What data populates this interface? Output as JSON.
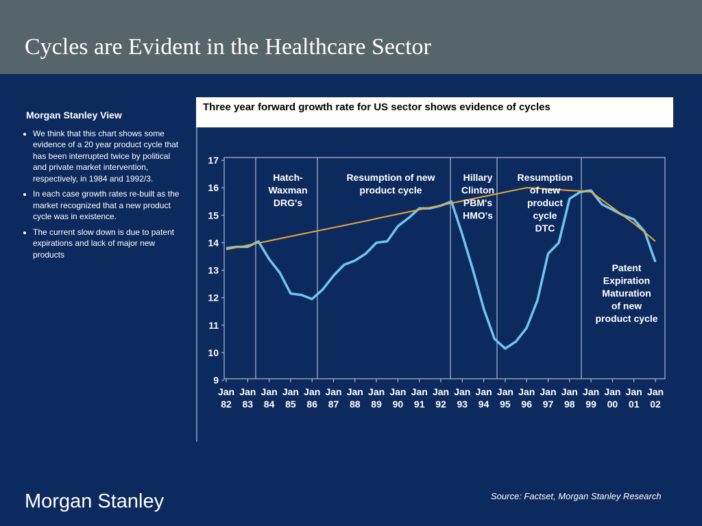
{
  "title": "Cycles are Evident in the Healthcare Sector",
  "sidebar": {
    "heading": "Morgan Stanley View",
    "bullets": [
      "We think that this chart shows some evidence of a 20 year product cycle that has been interrupted twice by political and private market intervention, respectively, in 1984 and 1992/3.",
      "In each case growth rates re-built as the market recognized that a new product cycle was in existence.",
      "The current slow down is due to patent expirations and lack of major new products"
    ]
  },
  "source": "Source: Factset, Morgan Stanley Research",
  "logo": "Morgan Stanley",
  "chart_data": {
    "type": "line",
    "title": "Three year forward growth rate for US sector shows evidence of cycles",
    "categories": [
      "Jan 82",
      null,
      "Jan 83",
      null,
      "Jan 84",
      null,
      "Jan 85",
      null,
      "Jan 86",
      null,
      "Jan 87",
      null,
      "Jan 88",
      null,
      "Jan 89",
      null,
      "Jan 90",
      null,
      "Jan 91",
      null,
      "Jan 92",
      null,
      "Jan 93",
      null,
      "Jan 94",
      null,
      "Jan 95",
      null,
      "Jan 96",
      null,
      "Jan 97",
      null,
      "Jan 98",
      null,
      "Jan 99",
      null,
      "Jan 00",
      null,
      "Jan 01",
      null,
      "Jan 02"
    ],
    "series": [
      {
        "color": "#6ec6f0",
        "values": [
          13.8,
          13.85,
          13.85,
          14.05,
          13.4,
          12.9,
          12.15,
          12.1,
          11.95,
          12.3,
          12.8,
          13.2,
          13.35,
          13.6,
          14.0,
          14.05,
          14.6,
          14.9,
          15.25,
          15.25,
          15.35,
          15.5,
          14.3,
          13.0,
          11.6,
          10.5,
          10.15,
          10.4,
          10.9,
          11.9,
          13.6,
          14.0,
          15.6,
          15.85,
          15.9,
          15.4,
          15.2,
          15.0,
          14.85,
          14.4,
          13.3
        ]
      },
      {
        "color": "#e8a93a",
        "values": [
          13.75,
          13.83,
          13.91,
          13.99,
          14.07,
          14.15,
          14.23,
          14.31,
          14.39,
          14.47,
          14.55,
          14.63,
          14.71,
          14.79,
          14.88,
          14.96,
          15.04,
          15.12,
          15.2,
          15.28,
          15.36,
          15.44,
          15.52,
          15.6,
          15.68,
          15.76,
          15.84,
          15.92,
          16.0,
          15.98,
          15.95,
          15.93,
          15.9,
          15.88,
          15.85,
          15.56,
          15.28,
          14.99,
          14.7,
          14.38,
          14.05
        ]
      }
    ],
    "ylim": [
      9,
      17
    ],
    "yticks": [
      9,
      10,
      11,
      12,
      13,
      14,
      15,
      16,
      17
    ],
    "annotations": [
      [
        "Hatch-",
        "Waxman",
        "DRG's"
      ],
      [
        "Resumption of new",
        "product cycle"
      ],
      [
        "Hillary",
        "Clinton",
        "PBM's",
        "HMO's"
      ],
      [
        "Resumption",
        "of new",
        "product",
        "cycle",
        "DTC"
      ],
      [
        "Patent",
        "Expiration",
        "Maturation",
        "of new",
        "product cycle"
      ]
    ]
  }
}
